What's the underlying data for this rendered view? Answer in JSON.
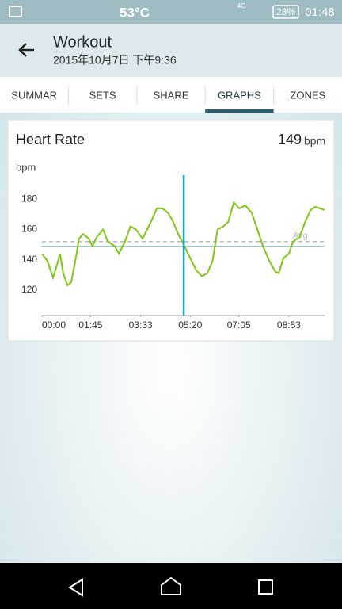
{
  "status_bar": {
    "temperature": "53°C",
    "network": "4G",
    "battery": "28%",
    "time": "01:48"
  },
  "header": {
    "title": "Workout",
    "subtitle": "2015年10月7日 下午9:36"
  },
  "tabs": [
    "SUMMAR",
    "SETS",
    "SHARE",
    "GRAPHS",
    "ZONES"
  ],
  "card": {
    "title": "Heart Rate",
    "value": 149,
    "unit": "bpm",
    "chart": {
      "type": "line",
      "y_label": "bpm",
      "color": "#7cc813",
      "x": [
        0,
        12,
        24,
        32,
        39,
        46,
        55,
        63,
        72,
        80,
        89,
        101,
        109,
        118,
        132,
        142,
        157,
        166,
        179,
        191,
        203,
        217,
        227,
        238,
        248,
        260,
        272,
        282,
        294,
        306,
        320,
        333,
        345,
        357,
        368,
        379,
        391,
        402,
        414,
        426,
        439,
        453,
        465,
        477,
        491,
        504,
        511,
        521,
        533,
        542,
        556,
        568,
        580,
        590,
        610
      ],
      "values": [
        144,
        139,
        128,
        136,
        144,
        131,
        123,
        125,
        139,
        154,
        157,
        154,
        149,
        155,
        160,
        152,
        149,
        144,
        152,
        162,
        160,
        154,
        160,
        167,
        174,
        174,
        171,
        166,
        157,
        150,
        141,
        133,
        129,
        131,
        139,
        160,
        162,
        165,
        178,
        174,
        176,
        171,
        160,
        149,
        139,
        132,
        131,
        141,
        144,
        152,
        155,
        165,
        173,
        175,
        173
      ],
      "xlim": [
        0,
        610
      ],
      "ylim": [
        103,
        196
      ],
      "xticks": [
        {
          "value": 0,
          "label": "00:00"
        },
        {
          "value": 105,
          "label": "01:45"
        },
        {
          "value": 213,
          "label": "03:33"
        },
        {
          "value": 320,
          "label": "05:20"
        },
        {
          "value": 425,
          "label": "07:05"
        },
        {
          "value": 533,
          "label": "08:53"
        }
      ],
      "yticks": [
        120,
        140,
        160,
        180
      ],
      "average": 152,
      "average_label": "Avg",
      "cursor_x": 306
    }
  }
}
